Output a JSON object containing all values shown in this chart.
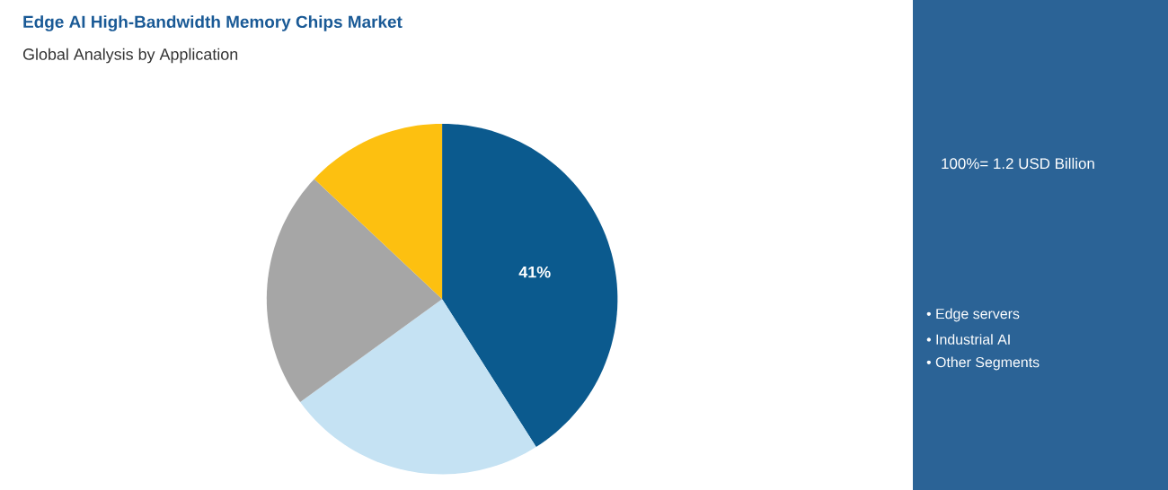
{
  "chart_data": {
    "type": "pie",
    "title": "Edge AI High-Bandwidth Memory Chips Market",
    "subtitle": "Global Analysis by Application",
    "categories": [
      null,
      null,
      null,
      null
    ],
    "values": [
      41,
      24,
      22,
      13
    ],
    "colors": [
      "#0b5a8e",
      "#c5e2f3",
      "#a6a6a6",
      "#fdc010"
    ],
    "value_labels": [
      "41%",
      null,
      null,
      null
    ],
    "annotations": [
      "100%= 1.2 USD Billion",
      "• Edge servers",
      "• Industrial AI",
      "• Other Segments"
    ]
  }
}
